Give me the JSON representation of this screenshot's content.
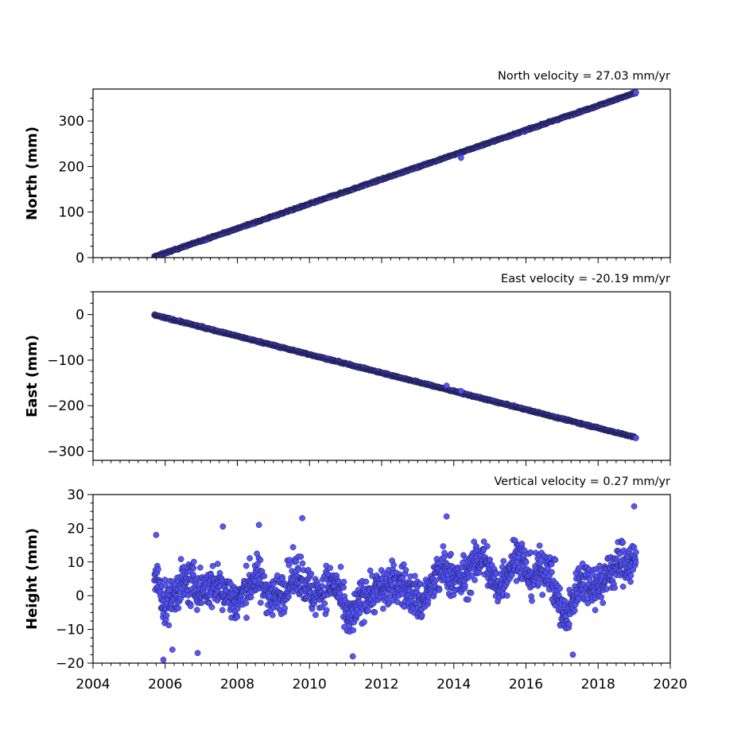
{
  "x_axis": {
    "xlim": [
      2004,
      2020
    ],
    "ticks": [
      2004,
      2006,
      2008,
      2010,
      2012,
      2014,
      2016,
      2018,
      2020
    ],
    "minor_tick_step": 0.25
  },
  "marker_color": "#4f4ff7",
  "marker_edge_color": "#1a1a40",
  "chart_data": [
    {
      "type": "scatter",
      "title": "North velocity = 27.03 mm/yr",
      "ylabel": "North (mm)",
      "ylim": [
        0,
        370
      ],
      "yticks": [
        0,
        100,
        200,
        300
      ],
      "yticklabels": [
        "0",
        "100",
        "200",
        "300"
      ],
      "trend": {
        "x": [
          2005.7,
          2019.05
        ],
        "y": [
          2,
          362
        ]
      },
      "noise": 2.5,
      "outliers": [
        {
          "x": 2014.2,
          "y": 219
        }
      ]
    },
    {
      "type": "scatter",
      "title": "East velocity = -20.19 mm/yr",
      "ylabel": "East (mm)",
      "ylim": [
        -320,
        50
      ],
      "yticks": [
        -300,
        -200,
        -100,
        0
      ],
      "yticklabels": [
        "−300",
        "−200",
        "−100",
        "0"
      ],
      "trend": {
        "x": [
          2005.7,
          2019.05
        ],
        "y": [
          -1,
          -270
        ]
      },
      "noise": 2.5,
      "outliers": [
        {
          "x": 2013.8,
          "y": -156
        },
        {
          "x": 2014.2,
          "y": -168
        }
      ]
    },
    {
      "type": "scatter",
      "title": "Vertical velocity = 0.27 mm/yr",
      "ylabel": "Height (mm)",
      "ylim": [
        -20,
        30
      ],
      "yticks": [
        -20,
        -10,
        0,
        10,
        20,
        30
      ],
      "yticklabels": [
        "−20",
        "−10",
        "0",
        "10",
        "20",
        "30"
      ],
      "x_range": [
        2005.7,
        2019.05
      ],
      "baseline": 3,
      "seasonal_pattern": [
        {
          "x": 2005.75,
          "y": 5
        },
        {
          "x": 2006.0,
          "y": -3
        },
        {
          "x": 2006.5,
          "y": 4
        },
        {
          "x": 2007.0,
          "y": 2
        },
        {
          "x": 2007.5,
          "y": 3
        },
        {
          "x": 2008.0,
          "y": -2
        },
        {
          "x": 2008.5,
          "y": 6
        },
        {
          "x": 2009.0,
          "y": -1
        },
        {
          "x": 2009.7,
          "y": 7
        },
        {
          "x": 2010.1,
          "y": 0
        },
        {
          "x": 2010.7,
          "y": 4
        },
        {
          "x": 2011.1,
          "y": -8
        },
        {
          "x": 2011.5,
          "y": 0
        },
        {
          "x": 2012.0,
          "y": 2
        },
        {
          "x": 2012.5,
          "y": 4
        },
        {
          "x": 2013.1,
          "y": -2
        },
        {
          "x": 2013.7,
          "y": 8
        },
        {
          "x": 2014.2,
          "y": 4
        },
        {
          "x": 2014.8,
          "y": 12
        },
        {
          "x": 2015.2,
          "y": 2
        },
        {
          "x": 2015.8,
          "y": 13
        },
        {
          "x": 2016.1,
          "y": 5
        },
        {
          "x": 2016.6,
          "y": 9
        },
        {
          "x": 2017.1,
          "y": -8
        },
        {
          "x": 2017.5,
          "y": 5
        },
        {
          "x": 2018.0,
          "y": 3
        },
        {
          "x": 2018.6,
          "y": 10
        },
        {
          "x": 2019.05,
          "y": 10
        }
      ],
      "noise": 4.5,
      "outliers": [
        {
          "x": 2005.75,
          "y": 18
        },
        {
          "x": 2005.95,
          "y": -19
        },
        {
          "x": 2006.2,
          "y": -16
        },
        {
          "x": 2006.9,
          "y": -17
        },
        {
          "x": 2007.6,
          "y": 20.5
        },
        {
          "x": 2008.6,
          "y": 21
        },
        {
          "x": 2009.8,
          "y": 23
        },
        {
          "x": 2011.2,
          "y": -18
        },
        {
          "x": 2013.8,
          "y": 23.5
        },
        {
          "x": 2017.3,
          "y": -17.5
        },
        {
          "x": 2019.0,
          "y": 26.5
        }
      ]
    }
  ]
}
